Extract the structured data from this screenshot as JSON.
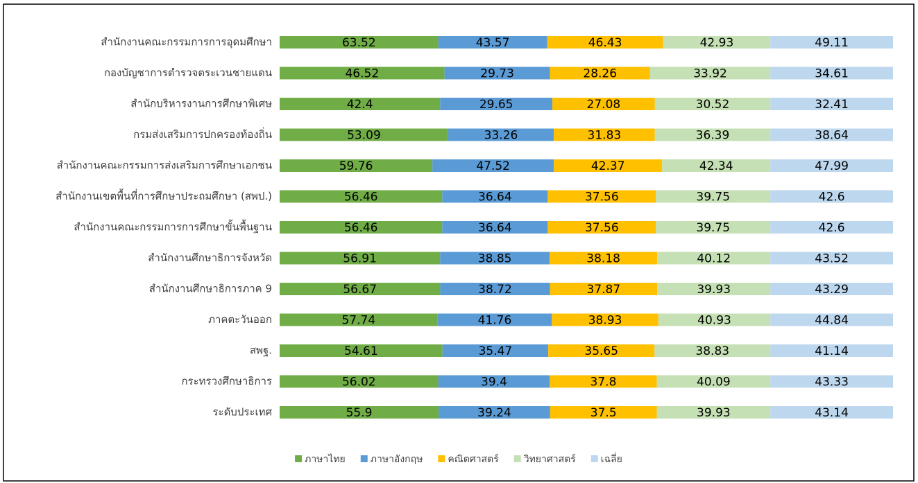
{
  "chart_data": {
    "type": "bar",
    "orientation": "horizontal",
    "stacked": "percent",
    "categories": [
      "สำนักงานคณะกรรมการการอุดมศึกษา",
      "กองบัญชาการตำรวจตระเวนชายแดน",
      "สำนักบริหารงานการศึกษาพิเศษ",
      "กรมส่งเสริมการปกครองท้องถิ่น",
      "สำนักงานคณะกรรมการส่งเสริมการศึกษาเอกชน",
      "สำนักงานเขตพื้นที่การศึกษาประถมศึกษา (สพป.)",
      "สำนักงานคณะกรรมการการศึกษาขั้นพื้นฐาน",
      "สำนักงานศึกษาธิการจังหวัด",
      "สำนักงานศึกษาธิการภาค 9",
      "ภาคตะวันออก",
      "สพฐ.",
      "กระทรวงศึกษาธิการ",
      "ระดับประเทศ"
    ],
    "series": [
      {
        "name": "ภาษาไทย",
        "color": "#70ad47",
        "values": [
          63.52,
          46.52,
          42.4,
          53.09,
          59.76,
          56.46,
          56.46,
          56.91,
          56.67,
          57.74,
          54.61,
          56.02,
          55.9
        ]
      },
      {
        "name": "ภาษาอังกฤษ",
        "color": "#5b9bd5",
        "values": [
          43.57,
          29.73,
          29.65,
          33.26,
          47.52,
          36.64,
          36.64,
          38.85,
          38.72,
          41.76,
          35.47,
          39.4,
          39.24
        ]
      },
      {
        "name": "คณิตศาสตร์",
        "color": "#ffc000",
        "values": [
          46.43,
          28.26,
          27.08,
          31.83,
          42.37,
          37.56,
          37.56,
          38.18,
          37.87,
          38.93,
          35.65,
          37.8,
          37.5
        ]
      },
      {
        "name": "วิทยาศาสตร์",
        "color": "#c5e0b4",
        "values": [
          42.93,
          33.92,
          30.52,
          36.39,
          42.34,
          39.75,
          39.75,
          40.12,
          39.93,
          40.93,
          38.83,
          40.09,
          39.93
        ]
      },
      {
        "name": "เฉลี่ย",
        "color": "#bdd7ee",
        "values": [
          49.11,
          34.61,
          32.41,
          38.64,
          47.99,
          42.6,
          42.6,
          43.52,
          43.29,
          44.84,
          41.14,
          43.33,
          43.14
        ]
      }
    ],
    "legend": "bottom"
  }
}
